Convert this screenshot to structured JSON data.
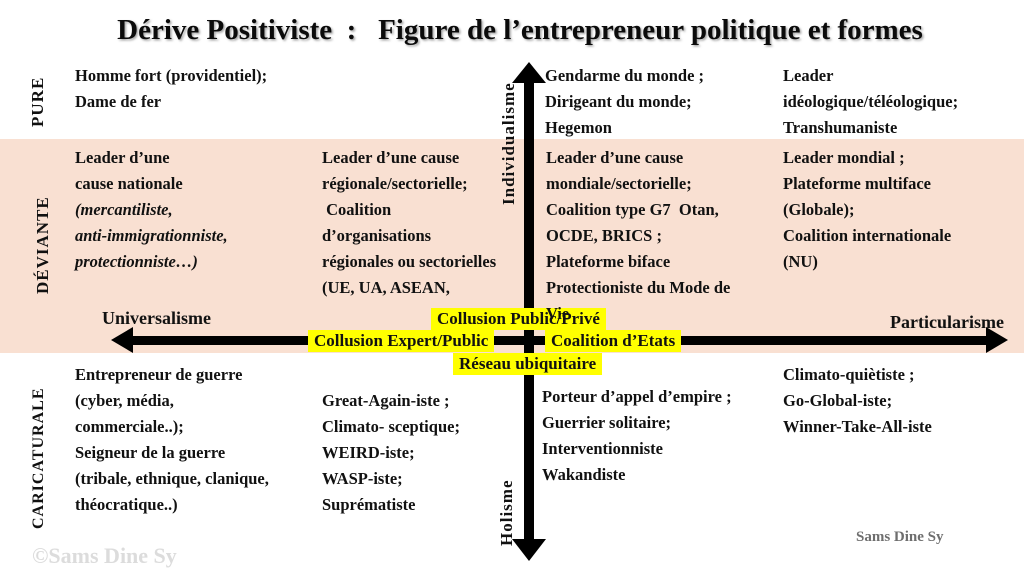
{
  "title": "Dérive Positiviste  :   Figure de l’entrepreneur politique et formes",
  "row_labels": {
    "pure": "PURE",
    "deviante": "DÉVIANTE",
    "caricaturale": "CARICATURALE"
  },
  "axes": {
    "top": "Individualisme",
    "bottom": "Holisme",
    "left": "Universalisme",
    "right": "Particularisme"
  },
  "center_labels": {
    "above": "Collusion Public/Privé",
    "left": "Collusion Expert/Public",
    "right": "Coalition d’Etats",
    "below": "Réseau ubiquitaire"
  },
  "cells": {
    "pure_left": "Homme fort (providentiel);\nDame de fer",
    "pure_mid": "Gendarme du monde ;\nDirigeant du monde;\nHegemon",
    "pure_right": "Leader\nidéologique/téléologique;\nTranshumaniste",
    "dev_col1_main": "Leader d’une\ncause nationale",
    "dev_col1_italic": "(mercantiliste,\nanti-immigrationniste,\nprotectionniste…)",
    "dev_col2": "Leader d’une cause\nrégionale/sectorielle;\n Coalition\nd’organisations\nrégionales ou sectorielles\n(UE, UA, ASEAN,",
    "dev_col3": "Leader d’une cause\nmondiale/sectorielle;\nCoalition type G7  Otan,\nOCDE, BRICS ;\nPlateforme biface\nProtectioniste du Mode de\nVie",
    "dev_col4": "Leader mondial ;\nPlateforme multiface\n(Globale);\nCoalition internationale\n(NU)",
    "car_col1": "Entrepreneur de guerre\n(cyber, média,\ncommerciale..);\nSeigneur de la guerre\n(tribale, ethnique, clanique,\nthéocratique..)",
    "car_col2": "Great-Again-iste ;\nClimato- sceptique;\nWEIRD-iste;\nWASP-iste;\nSuprématiste",
    "car_col3": "Porteur d’appel d’empire ;\nGuerrier solitaire;\nInterventionniste\nWakandiste",
    "car_col4": "Climato-quiètiste ;\nGo-Global-iste;\nWinner-Take-All-iste"
  },
  "watermark": "©Sams Dine Sy",
  "credit": "Sams Dine Sy",
  "colors": {
    "band": "#f9e0d2",
    "highlight": "#ffff00",
    "axis": "#000000"
  }
}
